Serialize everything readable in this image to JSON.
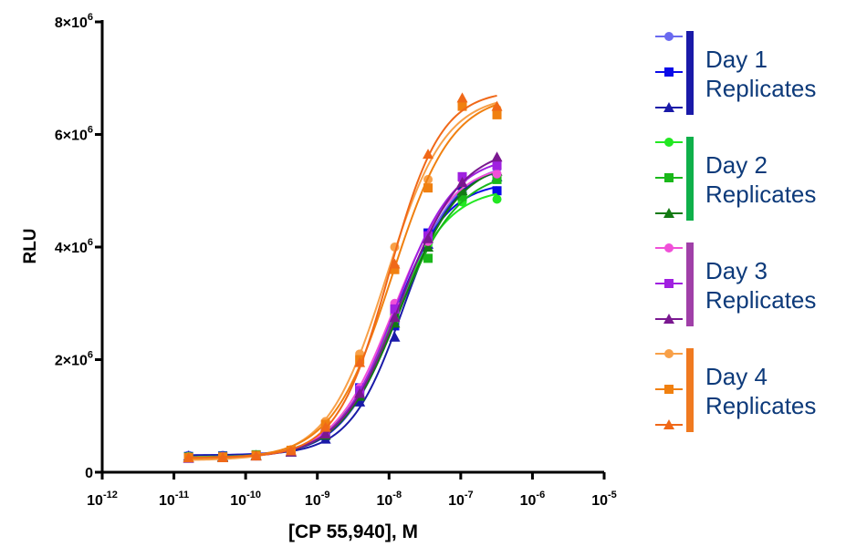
{
  "chart_data": {
    "type": "scatter",
    "xlabel": "[CP 55,940], M",
    "ylabel": "RLU",
    "x_scale": "log",
    "xlim": [
      1e-12,
      1e-05
    ],
    "ylim": [
      0,
      8000000
    ],
    "x_ticks": [
      {
        "base": "10",
        "exp": "-12"
      },
      {
        "base": "10",
        "exp": "-11"
      },
      {
        "base": "10",
        "exp": "-10"
      },
      {
        "base": "10",
        "exp": "-9"
      },
      {
        "base": "10",
        "exp": "-8"
      },
      {
        "base": "10",
        "exp": "-7"
      },
      {
        "base": "10",
        "exp": "-6"
      },
      {
        "base": "10",
        "exp": "-5"
      }
    ],
    "y_ticks": [
      {
        "value": 0,
        "mant": "0",
        "exp": ""
      },
      {
        "value": 2000000,
        "mant": "2×10",
        "exp": "6"
      },
      {
        "value": 4000000,
        "mant": "4×10",
        "exp": "6"
      },
      {
        "value": 6000000,
        "mant": "6×10",
        "exp": "6"
      },
      {
        "value": 8000000,
        "mant": "8×10",
        "exp": "6"
      }
    ],
    "x": [
      1.6e-11,
      4.8e-11,
      1.4e-10,
      4.3e-10,
      1.3e-09,
      3.9e-09,
      1.2e-08,
      3.5e-08,
      1.05e-07,
      3.2e-07
    ],
    "groups": [
      {
        "label_line1": "Day 1",
        "label_line2": "Replicates",
        "bar_color": "#1a1aa8",
        "series": [
          {
            "marker": "circle",
            "color": "#6a6af0",
            "values": [
              300000,
              300000,
              310000,
              380000,
              620000,
              1300000,
              2750000,
              4100000,
              5000000,
              5400000
            ]
          },
          {
            "marker": "square",
            "color": "#0a0ae8",
            "values": [
              280000,
              290000,
              300000,
              370000,
              650000,
              1500000,
              2600000,
              4250000,
              4900000,
              5000000
            ]
          },
          {
            "marker": "triangle",
            "color": "#1a1aa8",
            "values": [
              290000,
              280000,
              300000,
              360000,
              590000,
              1250000,
              2400000,
              4050000,
              5100000,
              5250000
            ]
          }
        ]
      },
      {
        "label_line1": "Day 2",
        "label_line2": "Replicates",
        "bar_color": "#0fb04a",
        "series": [
          {
            "marker": "circle",
            "color": "#22e822",
            "values": [
              280000,
              270000,
              300000,
              380000,
              700000,
              1450000,
              2700000,
              4050000,
              4800000,
              4850000
            ]
          },
          {
            "marker": "square",
            "color": "#1ab81a",
            "values": [
              270000,
              280000,
              310000,
              370000,
              680000,
              1400000,
              2800000,
              3800000,
              4900000,
              5200000
            ]
          },
          {
            "marker": "triangle",
            "color": "#137a13",
            "values": [
              260000,
              270000,
              300000,
              360000,
              660000,
              1350000,
              2650000,
              4000000,
              5000000,
              5350000
            ]
          }
        ]
      },
      {
        "label_line1": "Day 3",
        "label_line2": "Replicates",
        "bar_color": "#a040a8",
        "series": [
          {
            "marker": "circle",
            "color": "#f050d8",
            "values": [
              270000,
              280000,
              290000,
              380000,
              720000,
              1500000,
              3000000,
              4100000,
              5200000,
              5300000
            ]
          },
          {
            "marker": "square",
            "color": "#a020e0",
            "values": [
              260000,
              270000,
              300000,
              370000,
              700000,
              1450000,
              2900000,
              4200000,
              5250000,
              5450000
            ]
          },
          {
            "marker": "triangle",
            "color": "#7a1890",
            "values": [
              250000,
              260000,
              290000,
              360000,
              680000,
              1400000,
              2750000,
              4150000,
              5150000,
              5600000
            ]
          }
        ]
      },
      {
        "label_line1": "Day 4",
        "label_line2": "Replicates",
        "bar_color": "#f07a20",
        "series": [
          {
            "marker": "circle",
            "color": "#f8a048",
            "values": [
              270000,
              270000,
              290000,
              400000,
              900000,
              2100000,
              4000000,
              5200000,
              6550000,
              6450000
            ]
          },
          {
            "marker": "square",
            "color": "#f08010",
            "values": [
              260000,
              270000,
              300000,
              390000,
              850000,
              2000000,
              3600000,
              5050000,
              6500000,
              6350000
            ]
          },
          {
            "marker": "triangle",
            "color": "#f06818",
            "values": [
              260000,
              260000,
              290000,
              380000,
              800000,
              1950000,
              3700000,
              5650000,
              6650000,
              6500000
            ]
          }
        ]
      }
    ]
  }
}
